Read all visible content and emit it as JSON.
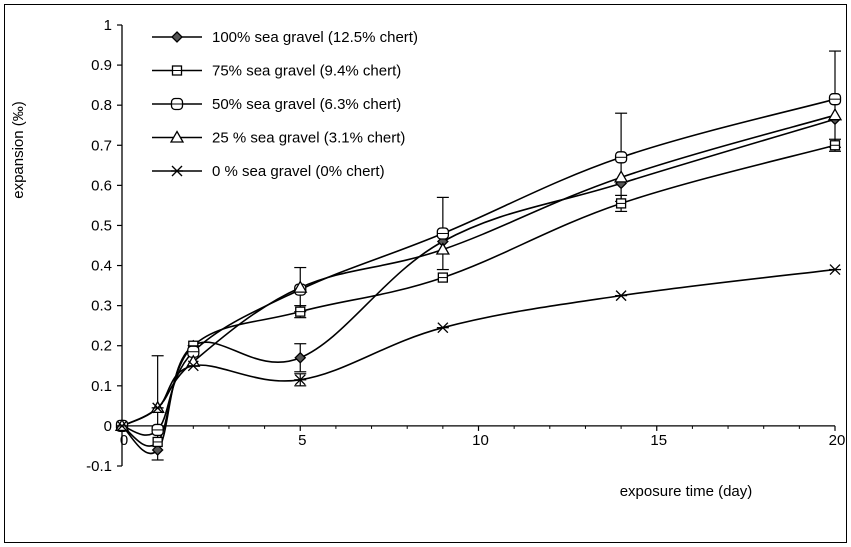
{
  "chart_data": {
    "type": "line",
    "xlabel": "exposure time (day)",
    "ylabel": "expansion (‰)",
    "xlim": [
      0,
      20
    ],
    "ylim": [
      -0.1,
      1
    ],
    "xticks": [
      "0",
      "5",
      "10",
      "15",
      "20"
    ],
    "yticks": [
      "-0.1",
      "0",
      "0.1",
      "0.2",
      "0.3",
      "0.4",
      "0.5",
      "0.6",
      "0.7",
      "0.8",
      "0.9",
      "1"
    ],
    "grid": false,
    "legend_position": "top-left",
    "x": [
      0,
      1,
      2,
      5,
      9,
      14,
      20
    ],
    "series": [
      {
        "name": "100% sea gravel (12.5% chert)",
        "marker": "diamond",
        "values": [
          0,
          -0.06,
          0.2,
          0.17,
          0.46,
          0.605,
          0.765
        ],
        "errors": [
          0,
          0,
          0,
          0.035,
          0,
          0,
          0
        ]
      },
      {
        "name": "75% sea gravel (9.4% chert)",
        "marker": "square",
        "values": [
          0,
          -0.04,
          0.2,
          0.285,
          0.37,
          0.555,
          0.7
        ],
        "errors": [
          0,
          0,
          0,
          0.015,
          0,
          0.02,
          0.015
        ]
      },
      {
        "name": "50% sea gravel (6.3% chert)",
        "marker": "circle",
        "values": [
          0,
          -0.01,
          0.185,
          0.34,
          0.48,
          0.67,
          0.815
        ],
        "errors": [
          0,
          0,
          0,
          0.055,
          0.09,
          0.11,
          0.12
        ]
      },
      {
        "name": "25 % sea gravel (3.1% chert)",
        "marker": "triangle",
        "values": [
          0,
          0.045,
          0.16,
          0.345,
          0.44,
          0.62,
          0.775
        ],
        "errors": [
          0,
          0.13,
          0,
          0,
          0,
          0,
          0
        ]
      },
      {
        "name": "0 % sea gravel (0% chert)",
        "marker": "asterisk",
        "values": [
          0,
          0.045,
          0.15,
          0.115,
          0.245,
          0.325,
          0.39
        ],
        "errors": [
          0,
          0,
          0,
          0.015,
          0,
          0,
          0
        ]
      }
    ]
  }
}
